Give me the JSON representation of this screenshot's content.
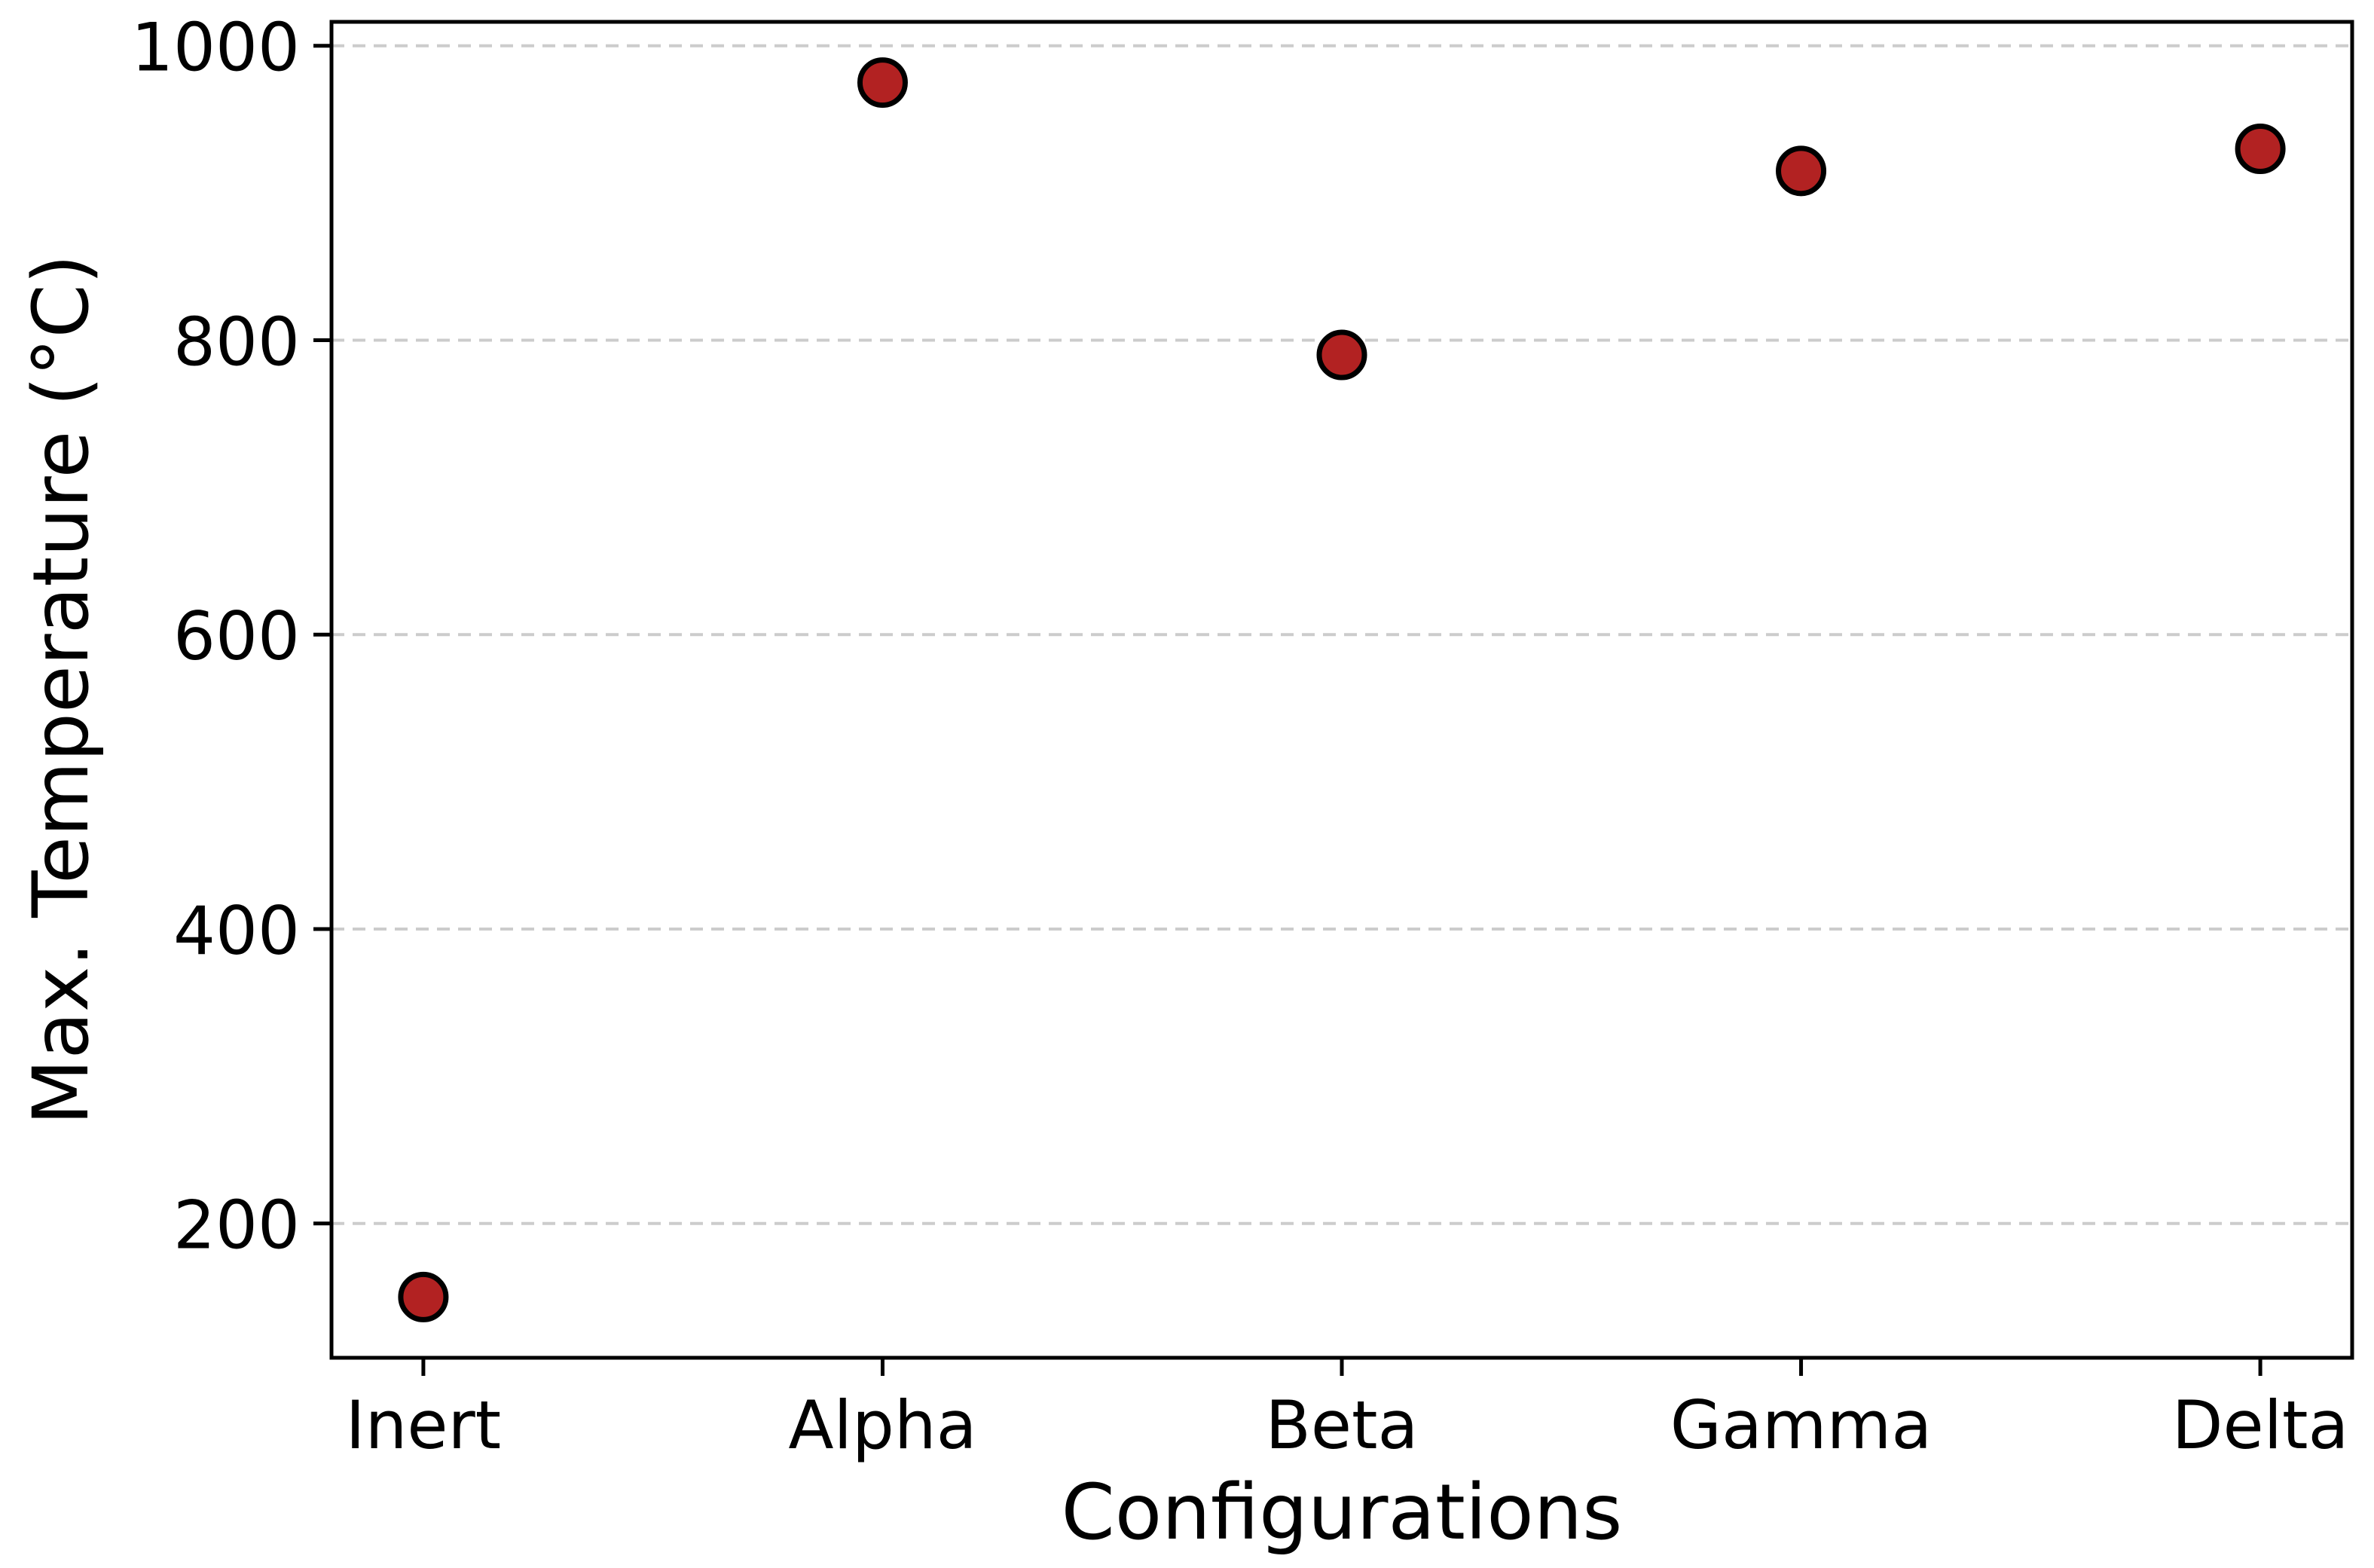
{
  "chart_data": {
    "type": "scatter",
    "categories": [
      "Inert",
      "Alpha",
      "Beta",
      "Gamma",
      "Delta"
    ],
    "values": [
      150,
      975,
      790,
      915,
      930
    ],
    "title": "",
    "xlabel": "Configurations",
    "ylabel": "Max. Temperature (°C)",
    "xlim": [
      -0.2,
      4.2
    ],
    "ylim": [
      108.75,
      1016.25
    ],
    "yticks": [
      200,
      400,
      600,
      800,
      1000
    ],
    "grid": {
      "axis": "y",
      "style": "dashed",
      "color": "#cccccc"
    },
    "legend": "none",
    "marker": {
      "shape": "circle",
      "fill": "#b22222",
      "edge": "#000000"
    },
    "spine_color": "#000000",
    "text_color": "#000000",
    "background": "#ffffff"
  }
}
